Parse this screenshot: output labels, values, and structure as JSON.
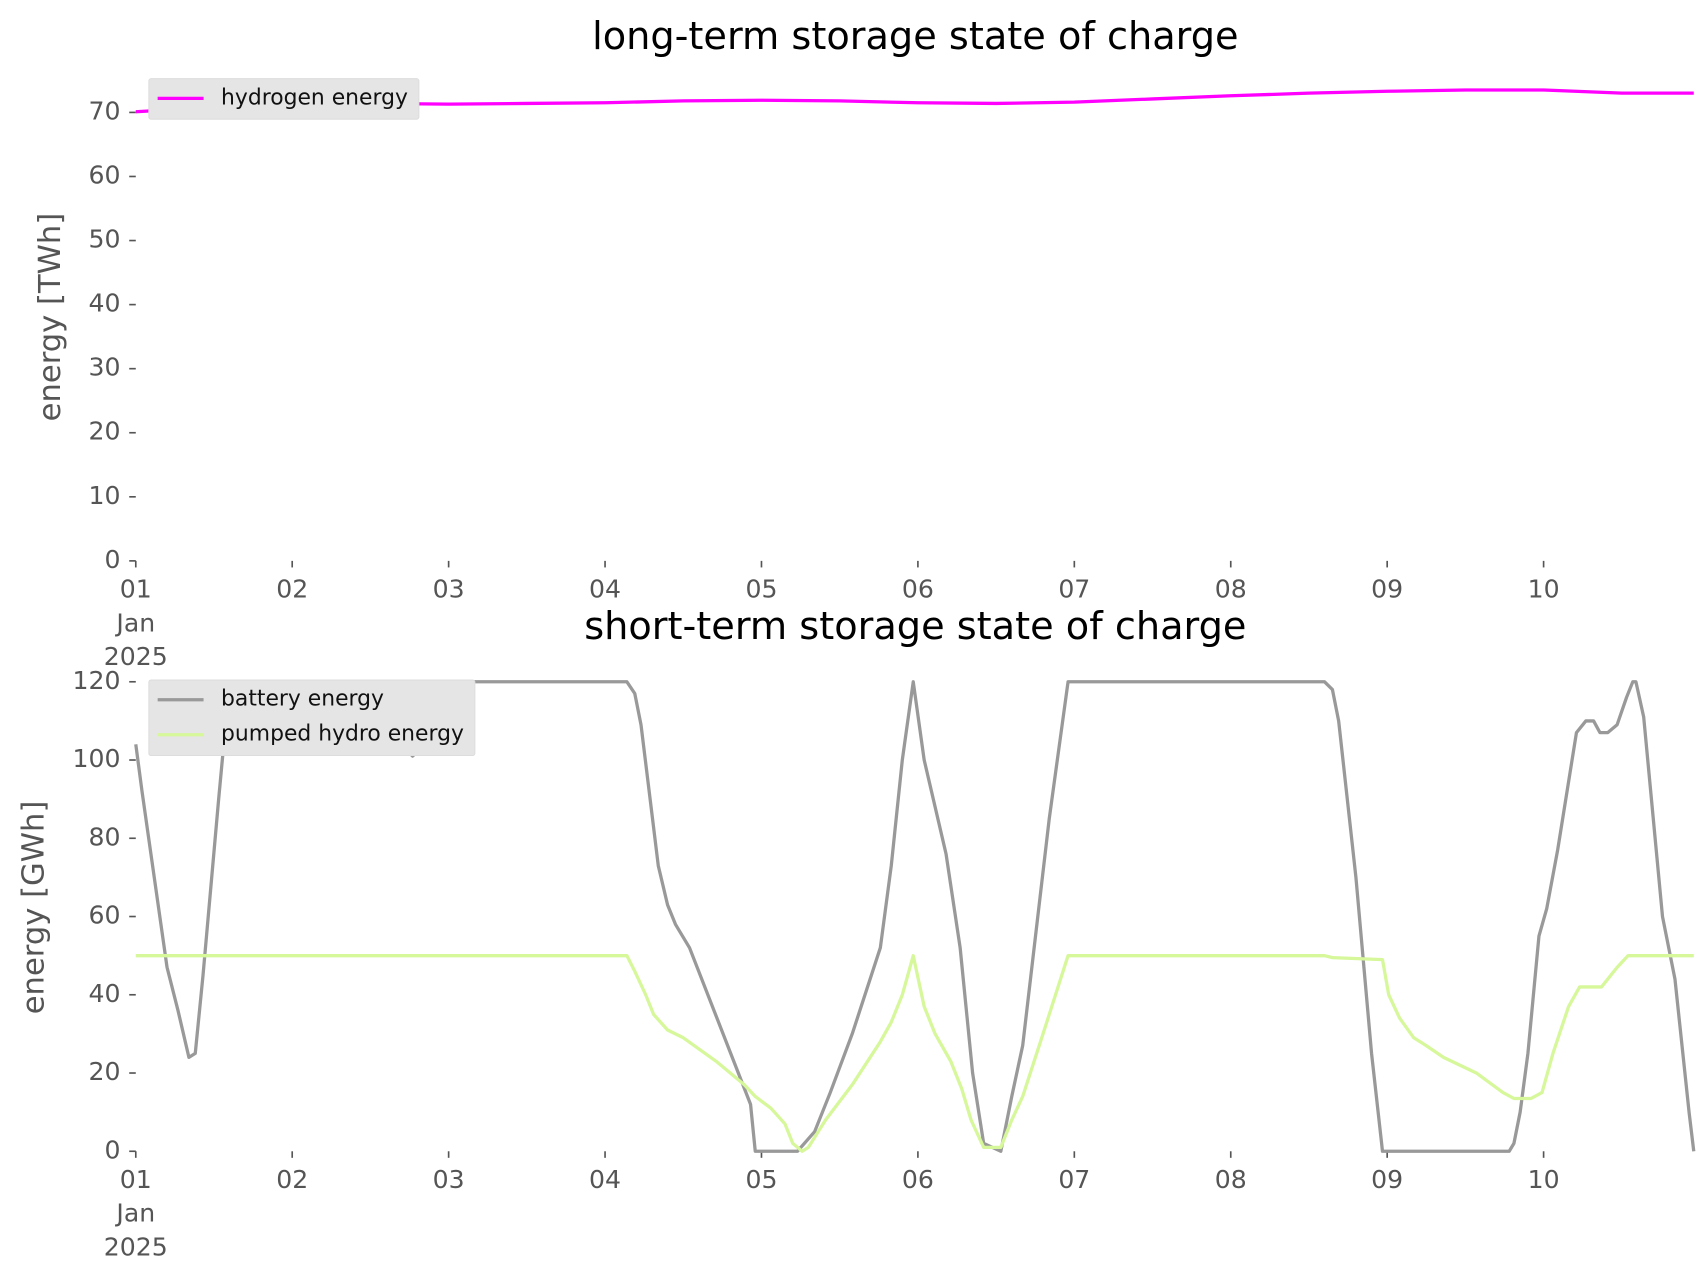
{
  "chart_data": [
    {
      "type": "line",
      "title": "long-term storage state of charge",
      "y_label": "energy [TWh]",
      "xlim": [
        0,
        9.96
      ],
      "ylim": [
        0,
        75.6
      ],
      "xticks": [
        {
          "value": 0,
          "label": "01\nJan\n2025"
        },
        {
          "value": 1,
          "label": "02"
        },
        {
          "value": 2,
          "label": "03"
        },
        {
          "value": 3,
          "label": "04"
        },
        {
          "value": 4,
          "label": "05"
        },
        {
          "value": 5,
          "label": "06"
        },
        {
          "value": 6,
          "label": "07"
        },
        {
          "value": 7,
          "label": "08"
        },
        {
          "value": 8,
          "label": "09"
        },
        {
          "value": 9,
          "label": "10"
        }
      ],
      "yticks": [
        0,
        10,
        20,
        30,
        40,
        50,
        60,
        70
      ],
      "legend": "upper left",
      "series": [
        {
          "name": "hydrogen energy",
          "color": "#ff00ff",
          "x": [
            0,
            0.5,
            1,
            1.5,
            2,
            2.5,
            3,
            3.5,
            4,
            4.5,
            5,
            5.5,
            6,
            6.5,
            7,
            7.5,
            8,
            8.5,
            9,
            9.5,
            9.96
          ],
          "values": [
            70.1,
            70.8,
            71.2,
            71.4,
            71.3,
            71.4,
            71.5,
            71.8,
            71.9,
            71.8,
            71.5,
            71.4,
            71.6,
            72.1,
            72.6,
            73.0,
            73.3,
            73.5,
            73.5,
            73.0,
            73.0
          ]
        }
      ]
    },
    {
      "type": "line",
      "title": "short-term storage state of charge",
      "y_label": "energy [GWh]",
      "xlim": [
        0,
        9.96
      ],
      "ylim": [
        0,
        121
      ],
      "xticks": [
        {
          "value": 0,
          "label": "01\nJan\n2025"
        },
        {
          "value": 1,
          "label": "02"
        },
        {
          "value": 2,
          "label": "03"
        },
        {
          "value": 3,
          "label": "04"
        },
        {
          "value": 4,
          "label": "05"
        },
        {
          "value": 5,
          "label": "06"
        },
        {
          "value": 6,
          "label": "07"
        },
        {
          "value": 7,
          "label": "08"
        },
        {
          "value": 8,
          "label": "09"
        },
        {
          "value": 9,
          "label": "10"
        }
      ],
      "yticks": [
        0,
        20,
        40,
        60,
        80,
        100,
        120
      ],
      "legend": "upper left",
      "series": [
        {
          "name": "battery energy",
          "color": "#999999",
          "x": [
            0,
            0.04,
            0.2,
            0.27,
            0.34,
            0.38,
            0.43,
            0.53,
            0.6,
            1.58,
            1.65,
            1.72,
            1.77,
            1.82,
            1.91,
            1.98,
            3.14,
            3.19,
            3.23,
            3.34,
            3.4,
            3.45,
            3.54,
            3.93,
            3.96,
            4.23,
            4.34,
            4.44,
            4.58,
            4.76,
            4.83,
            4.9,
            4.97,
            5.04,
            5.18,
            5.27,
            5.35,
            5.42,
            5.53,
            5.6,
            5.67,
            5.84,
            5.96,
            7.6,
            7.65,
            7.69,
            7.8,
            7.9,
            7.97,
            8.78,
            8.81,
            8.85,
            8.9,
            8.97,
            9.02,
            9.09,
            9.21,
            9.27,
            9.32,
            9.36,
            9.41,
            9.47,
            9.53,
            9.57,
            9.59,
            9.64,
            9.76,
            9.84,
            9.93,
            9.96
          ],
          "values": [
            104,
            92,
            47,
            36,
            24,
            25,
            45,
            90,
            120,
            120,
            116,
            103,
            101,
            103,
            110,
            120,
            120,
            117,
            109,
            73,
            63,
            58,
            52,
            12,
            0,
            0,
            5,
            15,
            30,
            52,
            73,
            100,
            120,
            100,
            76,
            52,
            20,
            2,
            0,
            14,
            27,
            85,
            120,
            120,
            118,
            110,
            70,
            25,
            0,
            0,
            2,
            10,
            25,
            55,
            62,
            77,
            107,
            110,
            110,
            107,
            107,
            109,
            116,
            120,
            120,
            111,
            60,
            44,
            10,
            0
          ]
        },
        {
          "name": "pumped hydro energy",
          "color": "#d6f79a",
          "x": [
            0,
            3.14,
            3.19,
            3.26,
            3.31,
            3.4,
            3.5,
            3.71,
            3.89,
            3.96,
            4.06,
            4.15,
            4.2,
            4.26,
            4.3,
            4.41,
            4.58,
            4.76,
            4.83,
            4.9,
            4.97,
            5.04,
            5.11,
            5.21,
            5.28,
            5.34,
            5.42,
            5.53,
            5.6,
            5.67,
            5.8,
            5.96,
            7.6,
            7.65,
            7.97,
            8.01,
            8.08,
            8.17,
            8.25,
            8.36,
            8.57,
            8.74,
            8.81,
            8.92,
            8.99,
            9.06,
            9.16,
            9.23,
            9.37,
            9.47,
            9.54,
            9.96
          ],
          "values": [
            50,
            50,
            46,
            40,
            35,
            31,
            29,
            23,
            17,
            14,
            11,
            7,
            2,
            0,
            1,
            8,
            17,
            28,
            33,
            40,
            50,
            37,
            30,
            23,
            16,
            8,
            1,
            1,
            8,
            14,
            30,
            50,
            50,
            49.5,
            49,
            40,
            34,
            29,
            27,
            24,
            20,
            15,
            13.5,
            13.5,
            15,
            25,
            37,
            42,
            42,
            47,
            50,
            50
          ]
        }
      ]
    }
  ]
}
